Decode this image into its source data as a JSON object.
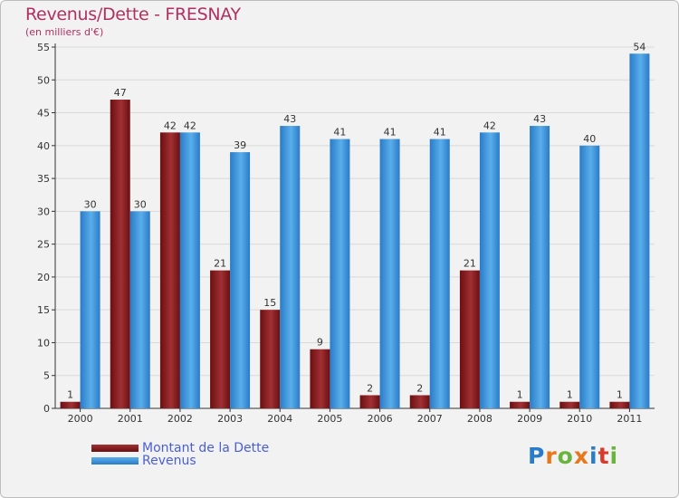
{
  "title": "Revenus/Dette - FRESNAY",
  "subtitle": "(en milliers d'€)",
  "logo_text": "Proxiti",
  "colors": {
    "dette": "#6b0f12",
    "dette_light": "#a03033",
    "revenus": "#2a7bc8",
    "revenus_light": "#5aaeea",
    "grid": "#d9d9d9",
    "axis": "#333333",
    "title": "#b03060",
    "legend_text": "#4a5fd6",
    "logo": [
      "#2a7bc8",
      "#e8771a",
      "#6ab43e",
      "#e8771a",
      "#2a7bc8",
      "#d93a2b",
      "#6ab43e"
    ]
  },
  "legend": [
    {
      "label": "Montant de la Dette",
      "color_key": "dette"
    },
    {
      "label": "Revenus",
      "color_key": "revenus"
    }
  ],
  "chart_data": {
    "type": "bar",
    "title": "Revenus/Dette - FRESNAY",
    "subtitle": "(en milliers d'€)",
    "categories": [
      "2000",
      "2001",
      "2002",
      "2003",
      "2004",
      "2005",
      "2006",
      "2007",
      "2008",
      "2009",
      "2010",
      "2011"
    ],
    "series": [
      {
        "name": "Montant de la Dette",
        "values": [
          1,
          47,
          42,
          21,
          15,
          9,
          2,
          2,
          21,
          1,
          1,
          1
        ]
      },
      {
        "name": "Revenus",
        "values": [
          30,
          30,
          42,
          39,
          43,
          41,
          41,
          41,
          42,
          43,
          40,
          54
        ]
      }
    ],
    "ylim": [
      0,
      55
    ],
    "yticks": [
      0,
      5,
      10,
      15,
      20,
      25,
      30,
      35,
      40,
      45,
      50,
      55
    ],
    "grid": true,
    "legend_position": "bottom-left",
    "data_labels": true
  }
}
